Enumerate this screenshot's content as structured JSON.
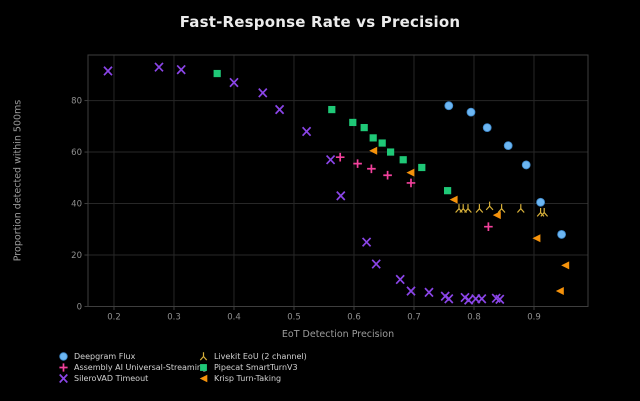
{
  "chart_data": {
    "type": "scatter",
    "title": "Fast-Response Rate vs Precision",
    "xlabel": "EoT Detection Precision",
    "ylabel": "Proportion detected within 500ms",
    "xlim": [
      0.1567,
      0.99
    ],
    "ylim": [
      0,
      97.7
    ],
    "xticks": [
      0.2,
      0.3,
      0.4,
      0.5,
      0.6,
      0.7,
      0.8,
      0.9
    ],
    "yticks": [
      0,
      20,
      40,
      60,
      80
    ],
    "grid": true,
    "legend_position": "bottom-left, 2 columns",
    "colors": {
      "background": "#000000",
      "gridline": "#272727",
      "frame": "#3e3e3e",
      "title_text": "#ececec",
      "tick_text": "#8f8f8f",
      "axis_label_text": "#9c9c9c",
      "legend_text": "#d2d2d2"
    },
    "series": [
      {
        "name": "Deepgram Flux",
        "marker": "circle",
        "color": "#6cb6f2",
        "points": [
          [
            0.758,
            78
          ],
          [
            0.795,
            75.5
          ],
          [
            0.822,
            69.5
          ],
          [
            0.857,
            62.5
          ],
          [
            0.887,
            55
          ],
          [
            0.911,
            40.5
          ],
          [
            0.946,
            28
          ]
        ]
      },
      {
        "name": "Assembly AI Universal-Streaming",
        "marker": "plus",
        "color": "#f2419c",
        "points": [
          [
            0.577,
            58
          ],
          [
            0.606,
            55.5
          ],
          [
            0.629,
            53.5
          ],
          [
            0.656,
            51
          ],
          [
            0.695,
            48
          ],
          [
            0.824,
            31
          ]
        ]
      },
      {
        "name": "SileroVAD Timeout",
        "marker": "x",
        "color": "#8b45e8",
        "points": [
          [
            0.19,
            91.5
          ],
          [
            0.275,
            93
          ],
          [
            0.312,
            92
          ],
          [
            0.4,
            87
          ],
          [
            0.448,
            83
          ],
          [
            0.476,
            76.5
          ],
          [
            0.521,
            68
          ],
          [
            0.561,
            57
          ],
          [
            0.578,
            43
          ],
          [
            0.621,
            25
          ],
          [
            0.637,
            16.5
          ],
          [
            0.677,
            10.5
          ],
          [
            0.695,
            6
          ],
          [
            0.725,
            5.5
          ],
          [
            0.752,
            4
          ],
          [
            0.758,
            3
          ],
          [
            0.785,
            3.5
          ],
          [
            0.791,
            2.5
          ],
          [
            0.803,
            3
          ],
          [
            0.813,
            3
          ],
          [
            0.837,
            3.2
          ],
          [
            0.843,
            2.8
          ]
        ]
      },
      {
        "name": "Livekit EoU (2 channel)",
        "marker": "tri_down",
        "color": "#d8b13a",
        "points": [
          [
            0.775,
            38
          ],
          [
            0.782,
            38
          ],
          [
            0.79,
            38
          ],
          [
            0.809,
            38
          ],
          [
            0.826,
            39
          ],
          [
            0.846,
            38
          ],
          [
            0.878,
            38
          ],
          [
            0.911,
            36.5
          ],
          [
            0.917,
            36.5
          ]
        ]
      },
      {
        "name": "Pipecat SmartTurnV3",
        "marker": "square",
        "color": "#1fc877",
        "points": [
          [
            0.372,
            90.5
          ],
          [
            0.563,
            76.5
          ],
          [
            0.598,
            71.5
          ],
          [
            0.617,
            69.5
          ],
          [
            0.632,
            65.5
          ],
          [
            0.647,
            63.5
          ],
          [
            0.661,
            60
          ],
          [
            0.682,
            57
          ],
          [
            0.713,
            54
          ],
          [
            0.756,
            45
          ]
        ]
      },
      {
        "name": "Krisp Turn-Taking",
        "marker": "tri_left",
        "color": "#f5920b",
        "points": [
          [
            0.632,
            60.5
          ],
          [
            0.694,
            52
          ],
          [
            0.766,
            41.5
          ],
          [
            0.838,
            35.5
          ],
          [
            0.904,
            26.5
          ],
          [
            0.952,
            16
          ],
          [
            0.943,
            6
          ]
        ]
      }
    ]
  }
}
